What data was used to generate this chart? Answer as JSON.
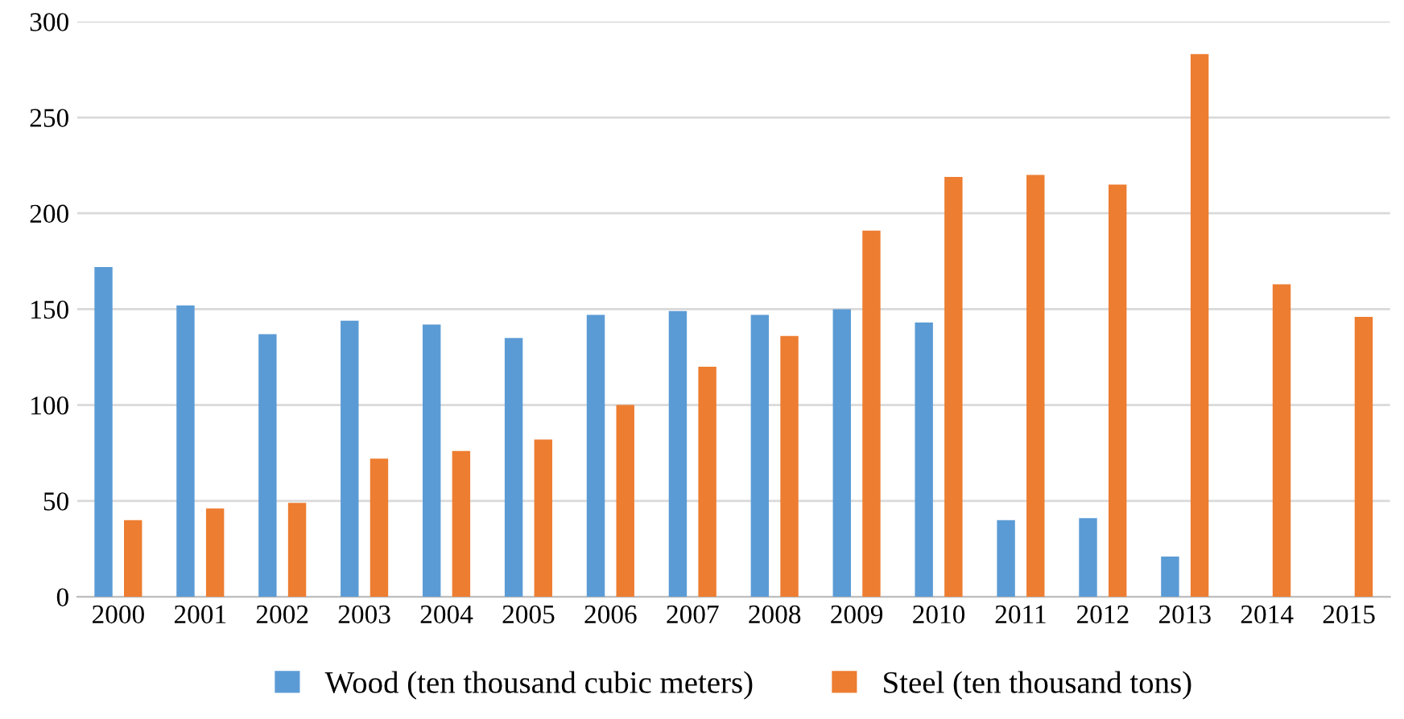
{
  "chart_data": {
    "type": "bar",
    "categories": [
      "2000",
      "2001",
      "2002",
      "2003",
      "2004",
      "2005",
      "2006",
      "2007",
      "2008",
      "2009",
      "2010",
      "2011",
      "2012",
      "2013",
      "2014",
      "2015"
    ],
    "series": [
      {
        "name": "Wood (ten thousand cubic meters)",
        "color": "#5b9bd5",
        "values": [
          172,
          152,
          137,
          144,
          142,
          135,
          147,
          149,
          147,
          150,
          143,
          40,
          41,
          21,
          null,
          null
        ]
      },
      {
        "name": "Steel (ten thousand tons)",
        "color": "#ed7d31",
        "values": [
          40,
          46,
          49,
          72,
          76,
          82,
          100,
          120,
          136,
          191,
          219,
          220,
          215,
          283,
          163,
          146
        ]
      }
    ],
    "ylim": [
      0,
      300
    ],
    "yticks": [
      0,
      50,
      100,
      150,
      200,
      250,
      300
    ],
    "grid": "y",
    "legend": "bottom"
  }
}
